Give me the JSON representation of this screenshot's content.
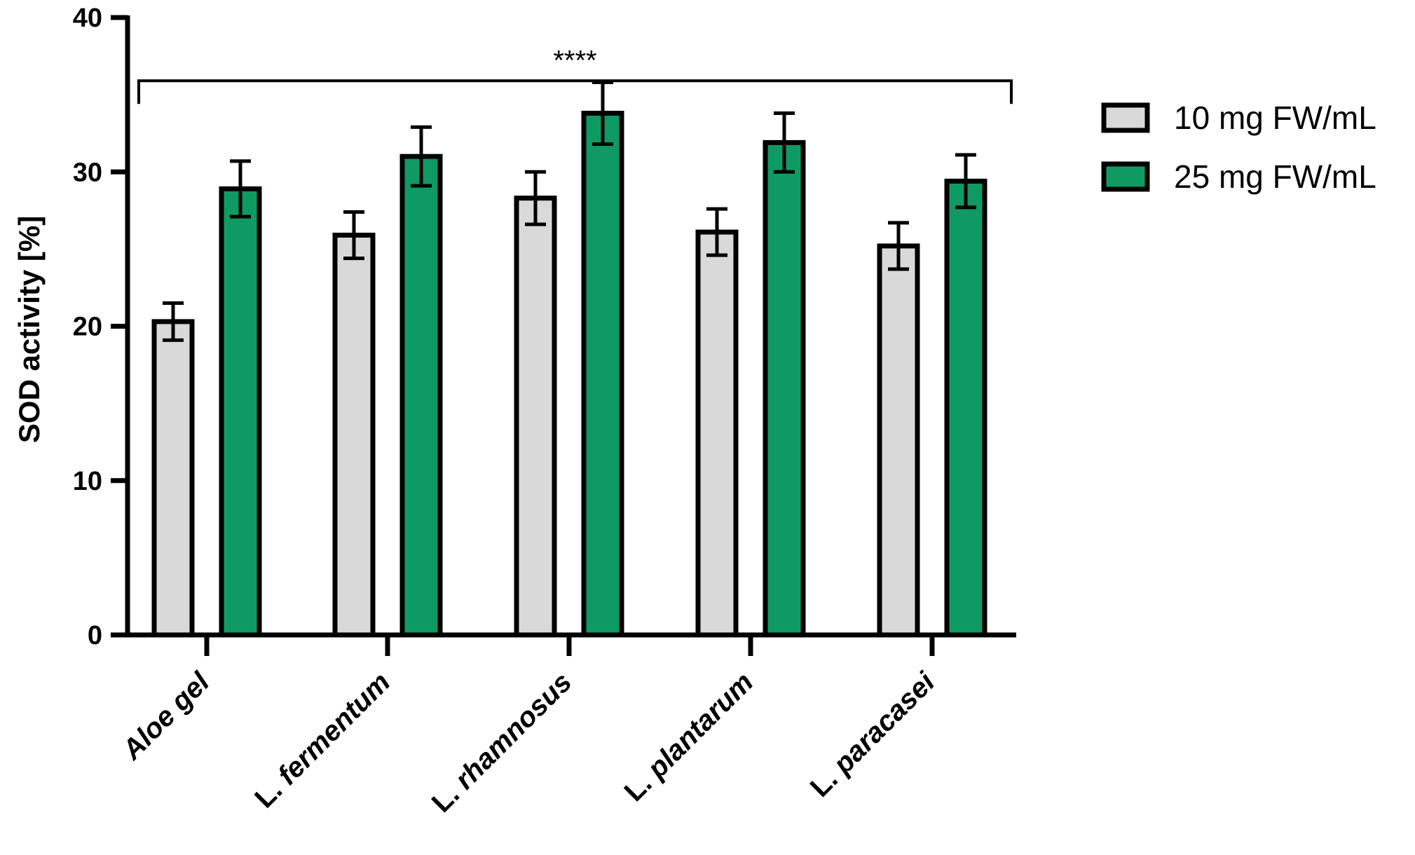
{
  "chart_data": {
    "type": "bar",
    "title": "",
    "xlabel": "",
    "ylabel": "SOD activity [%]",
    "ylim": [
      0,
      40
    ],
    "yticks": [
      0,
      10,
      20,
      30,
      40
    ],
    "grid": false,
    "legend_position": "top-right",
    "categories": [
      {
        "prefix": "",
        "italic": "Aloe gel",
        "full": "Aloe gel"
      },
      {
        "prefix": "L. ",
        "italic": "fermentum",
        "full": "L. fermentum"
      },
      {
        "prefix": "L. ",
        "italic": "rhamnosus",
        "full": "L. rhamnosus"
      },
      {
        "prefix": "L. ",
        "italic": "plantarum",
        "full": "L. plantarum"
      },
      {
        "prefix": "L. ",
        "italic": "paracasei",
        "full": "L. paracasei"
      }
    ],
    "series": [
      {
        "name": "10 mg FW/mL",
        "color": "#d9d9d9",
        "values": [
          20.3,
          25.9,
          28.3,
          26.1,
          25.2
        ],
        "errors": [
          1.2,
          1.5,
          1.7,
          1.5,
          1.5
        ]
      },
      {
        "name": "25 mg FW/mL",
        "color": "#0f9a63",
        "values": [
          28.9,
          31.0,
          33.8,
          31.9,
          29.4
        ],
        "errors": [
          1.8,
          1.9,
          2.0,
          1.9,
          1.7
        ]
      }
    ],
    "significance": {
      "label": "****",
      "value": 35.9
    }
  }
}
